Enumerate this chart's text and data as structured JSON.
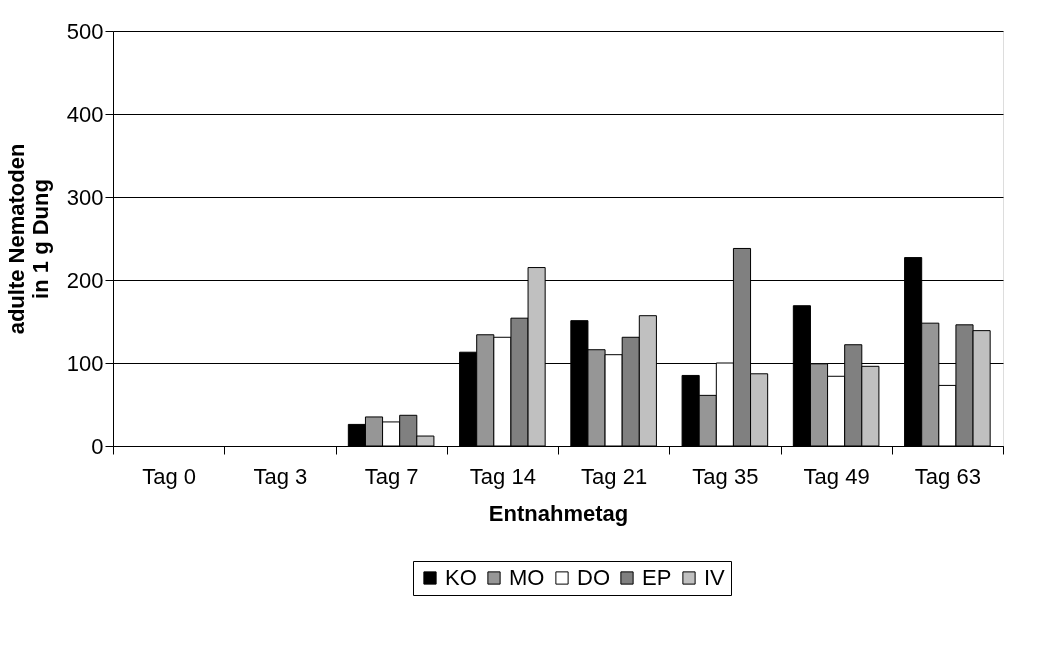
{
  "chart_data": {
    "type": "bar",
    "xlabel": "Entnahmetag",
    "ylabel": "adulte Nematoden\nin 1 g Dung",
    "categories": [
      "Tag 0",
      "Tag 3",
      "Tag 7",
      "Tag 14",
      "Tag 21",
      "Tag 35",
      "Tag 49",
      "Tag 63"
    ],
    "series": [
      {
        "name": "KO",
        "color": "#000000",
        "values": [
          0,
          0,
          26,
          113,
          151,
          85,
          169,
          227
        ]
      },
      {
        "name": "MO",
        "color": "#969696",
        "values": [
          0,
          0,
          35,
          134,
          116,
          61,
          99,
          148
        ]
      },
      {
        "name": "DO",
        "color": "#ffffff",
        "values": [
          0,
          0,
          29,
          131,
          110,
          100,
          84,
          73
        ]
      },
      {
        "name": "EP",
        "color": "#808080",
        "values": [
          0,
          0,
          37,
          154,
          131,
          238,
          122,
          146
        ]
      },
      {
        "name": "IV",
        "color": "#c0c0c0",
        "values": [
          0,
          0,
          12,
          215,
          157,
          87,
          96,
          139
        ]
      }
    ],
    "ylim": [
      0,
      500
    ],
    "yticks": [
      0,
      100,
      200,
      300,
      400,
      500
    ],
    "grid": "y",
    "legend": "bottom"
  }
}
